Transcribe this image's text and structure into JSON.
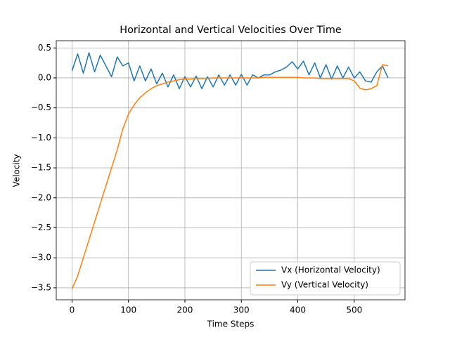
{
  "chart_data": {
    "type": "line",
    "title": "Horizontal and Vertical Velocities Over Time",
    "x_label": "Time Steps",
    "y_label": "Velocity",
    "x": [
      0,
      10,
      20,
      30,
      40,
      50,
      60,
      70,
      80,
      90,
      100,
      110,
      120,
      130,
      140,
      150,
      160,
      170,
      180,
      190,
      200,
      210,
      220,
      230,
      240,
      250,
      260,
      270,
      280,
      290,
      300,
      310,
      320,
      330,
      340,
      350,
      360,
      370,
      380,
      390,
      400,
      410,
      420,
      430,
      440,
      450,
      460,
      470,
      480,
      490,
      500,
      510,
      520,
      530,
      540,
      550,
      560
    ],
    "series": [
      {
        "name": "Vx (Horizontal Velocity)",
        "color": "#1f77b4",
        "values": [
          0.12,
          0.4,
          0.08,
          0.42,
          0.1,
          0.38,
          0.2,
          0.02,
          0.35,
          0.2,
          0.25,
          -0.05,
          0.2,
          -0.05,
          0.15,
          -0.1,
          0.08,
          -0.15,
          0.05,
          -0.18,
          0.02,
          -0.15,
          0.03,
          -0.18,
          0.02,
          -0.15,
          0.05,
          -0.12,
          0.05,
          -0.12,
          0.06,
          -0.12,
          0.05,
          0.0,
          0.05,
          0.05,
          0.1,
          0.13,
          0.18,
          0.27,
          0.15,
          0.28,
          0.05,
          0.25,
          0.0,
          0.22,
          -0.02,
          0.2,
          0.0,
          0.18,
          0.0,
          0.1,
          -0.05,
          -0.07,
          0.1,
          0.2,
          0.0
        ]
      },
      {
        "name": "Vy (Vertical Velocity)",
        "color": "#ff7f0e",
        "values": [
          -3.52,
          -3.3,
          -3.0,
          -2.7,
          -2.4,
          -2.1,
          -1.8,
          -1.5,
          -1.2,
          -0.85,
          -0.6,
          -0.45,
          -0.33,
          -0.25,
          -0.18,
          -0.13,
          -0.1,
          -0.07,
          -0.05,
          -0.03,
          -0.02,
          -0.02,
          -0.01,
          -0.01,
          -0.01,
          0,
          0,
          0,
          0,
          0,
          0,
          0,
          0,
          0,
          0.01,
          0.01,
          0.01,
          0.01,
          0.01,
          0.01,
          0.01,
          0,
          0,
          0,
          -0.01,
          -0.01,
          -0.01,
          -0.01,
          -0.01,
          -0.01,
          -0.05,
          -0.17,
          -0.2,
          -0.18,
          -0.13,
          0.22,
          0.2
        ]
      }
    ],
    "xlim": [
      -28,
      590
    ],
    "ylim": [
      -3.7,
      0.62
    ],
    "xticks": [
      0,
      100,
      200,
      300,
      400,
      500
    ],
    "yticks": [
      {
        "value": -3.5,
        "label": "−3.5"
      },
      {
        "value": -3.0,
        "label": "−3.0"
      },
      {
        "value": -2.5,
        "label": "−2.5"
      },
      {
        "value": -2.0,
        "label": "−2.0"
      },
      {
        "value": -1.5,
        "label": "−1.5"
      },
      {
        "value": -1.0,
        "label": "−1.0"
      },
      {
        "value": -0.5,
        "label": "−0.5"
      },
      {
        "value": 0.0,
        "label": "0.0"
      },
      {
        "value": 0.5,
        "label": "0.5"
      }
    ],
    "grid": true,
    "legend": "lower right"
  }
}
